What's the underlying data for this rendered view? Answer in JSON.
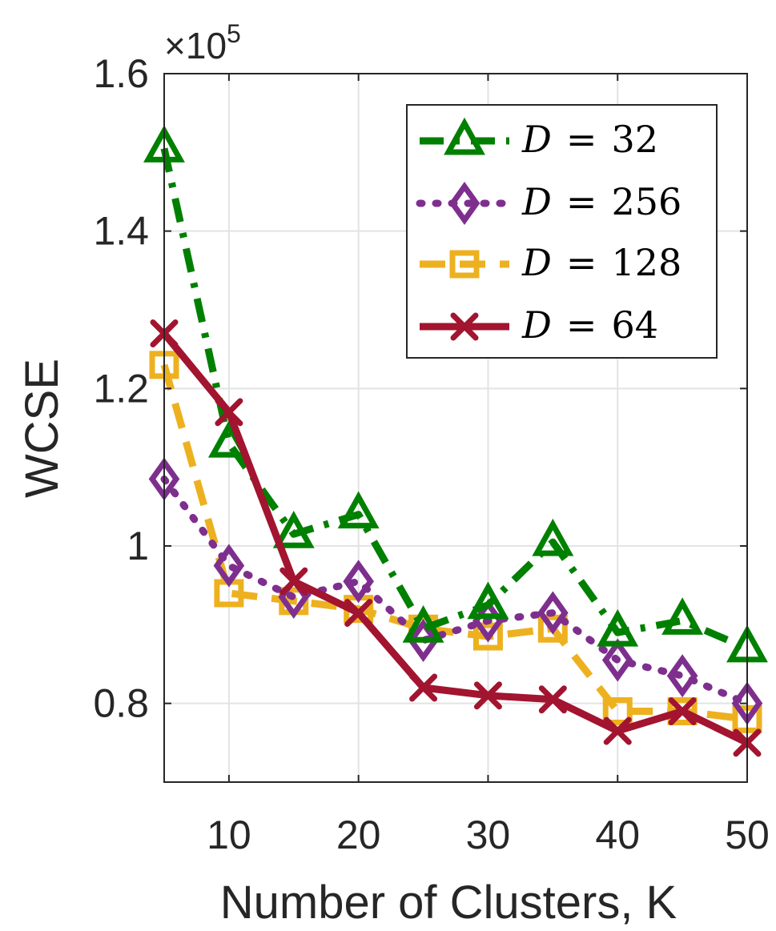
{
  "chart_data": {
    "type": "line",
    "xlabel": "Number of Clusters, K",
    "ylabel": "WCSE",
    "y_exponent_prefix": "×10",
    "y_exponent_power": "5",
    "xlim": [
      5,
      50
    ],
    "ylim": [
      0.7,
      1.6
    ],
    "x_ticks": [
      10,
      20,
      30,
      40,
      50
    ],
    "x_tick_labels": [
      "10",
      "20",
      "30",
      "40",
      "50"
    ],
    "y_ticks": [
      0.8,
      1.0,
      1.2,
      1.4,
      1.6
    ],
    "y_tick_labels": [
      "0.8",
      "1",
      "1.2",
      "1.4",
      "1.6"
    ],
    "grid": true,
    "legend_position": "top-right",
    "x": [
      5,
      10,
      15,
      20,
      25,
      30,
      35,
      40,
      45,
      50
    ],
    "series": [
      {
        "name": "D = 32",
        "legend_var": "D",
        "legend_eq": "=",
        "legend_value": "32",
        "color": "#008000",
        "line_style": "dashdot",
        "marker": "triangle",
        "values": [
          1.505,
          1.13,
          1.015,
          1.04,
          0.895,
          0.925,
          1.005,
          0.89,
          0.905,
          0.87
        ]
      },
      {
        "name": "D = 256",
        "legend_var": "D",
        "legend_eq": "=",
        "legend_value": "256",
        "color": "#7E2F8E",
        "line_style": "dotted",
        "marker": "diamond",
        "values": [
          1.085,
          0.975,
          0.935,
          0.955,
          0.88,
          0.905,
          0.915,
          0.855,
          0.835,
          0.8
        ]
      },
      {
        "name": "D = 128",
        "legend_var": "D",
        "legend_eq": "=",
        "legend_value": "128",
        "color": "#EDB120",
        "line_style": "dashed",
        "marker": "square",
        "values": [
          1.23,
          0.94,
          0.93,
          0.92,
          0.895,
          0.885,
          0.895,
          0.79,
          0.79,
          0.78
        ]
      },
      {
        "name": "D = 64",
        "legend_var": "D",
        "legend_eq": "=",
        "legend_value": "64",
        "color": "#A2142F",
        "line_style": "solid",
        "marker": "x",
        "values": [
          1.27,
          1.17,
          0.955,
          0.915,
          0.82,
          0.81,
          0.805,
          0.765,
          0.79,
          0.75
        ]
      }
    ]
  }
}
